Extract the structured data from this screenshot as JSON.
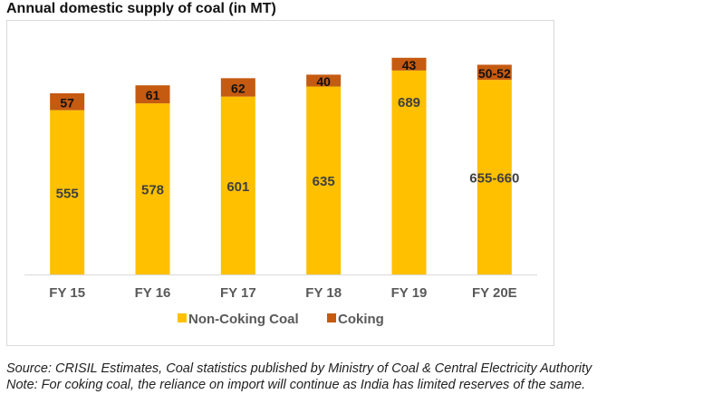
{
  "chart_data": {
    "type": "bar",
    "stacked": true,
    "title": "Annual domestic supply of coal (in MT)",
    "categories": [
      "FY 15",
      "FY 16",
      "FY 17",
      "FY 18",
      "FY 19",
      "FY 20E"
    ],
    "series": [
      {
        "name": "Non-Coking Coal",
        "color": "#FFC000",
        "values": [
          555,
          578,
          601,
          635,
          689,
          657.5
        ],
        "labels": [
          "555",
          "578",
          "601",
          "635",
          "689",
          "655-660"
        ]
      },
      {
        "name": "Coking",
        "color": "#C55A11",
        "values": [
          57,
          61,
          62,
          40,
          43,
          51
        ],
        "labels": [
          "57",
          "61",
          "62",
          "40",
          "43",
          "50-52"
        ]
      }
    ],
    "xlabel": "",
    "ylabel": "",
    "ylim": [
      0,
      800
    ],
    "grid": false,
    "legend": "bottom"
  },
  "footer": {
    "source": "Source: CRISIL Estimates, Coal statistics published by Ministry of Coal & Central Electricity Authority",
    "note": "Note: For coking coal, the reliance on import will continue as India has limited reserves of the same."
  }
}
